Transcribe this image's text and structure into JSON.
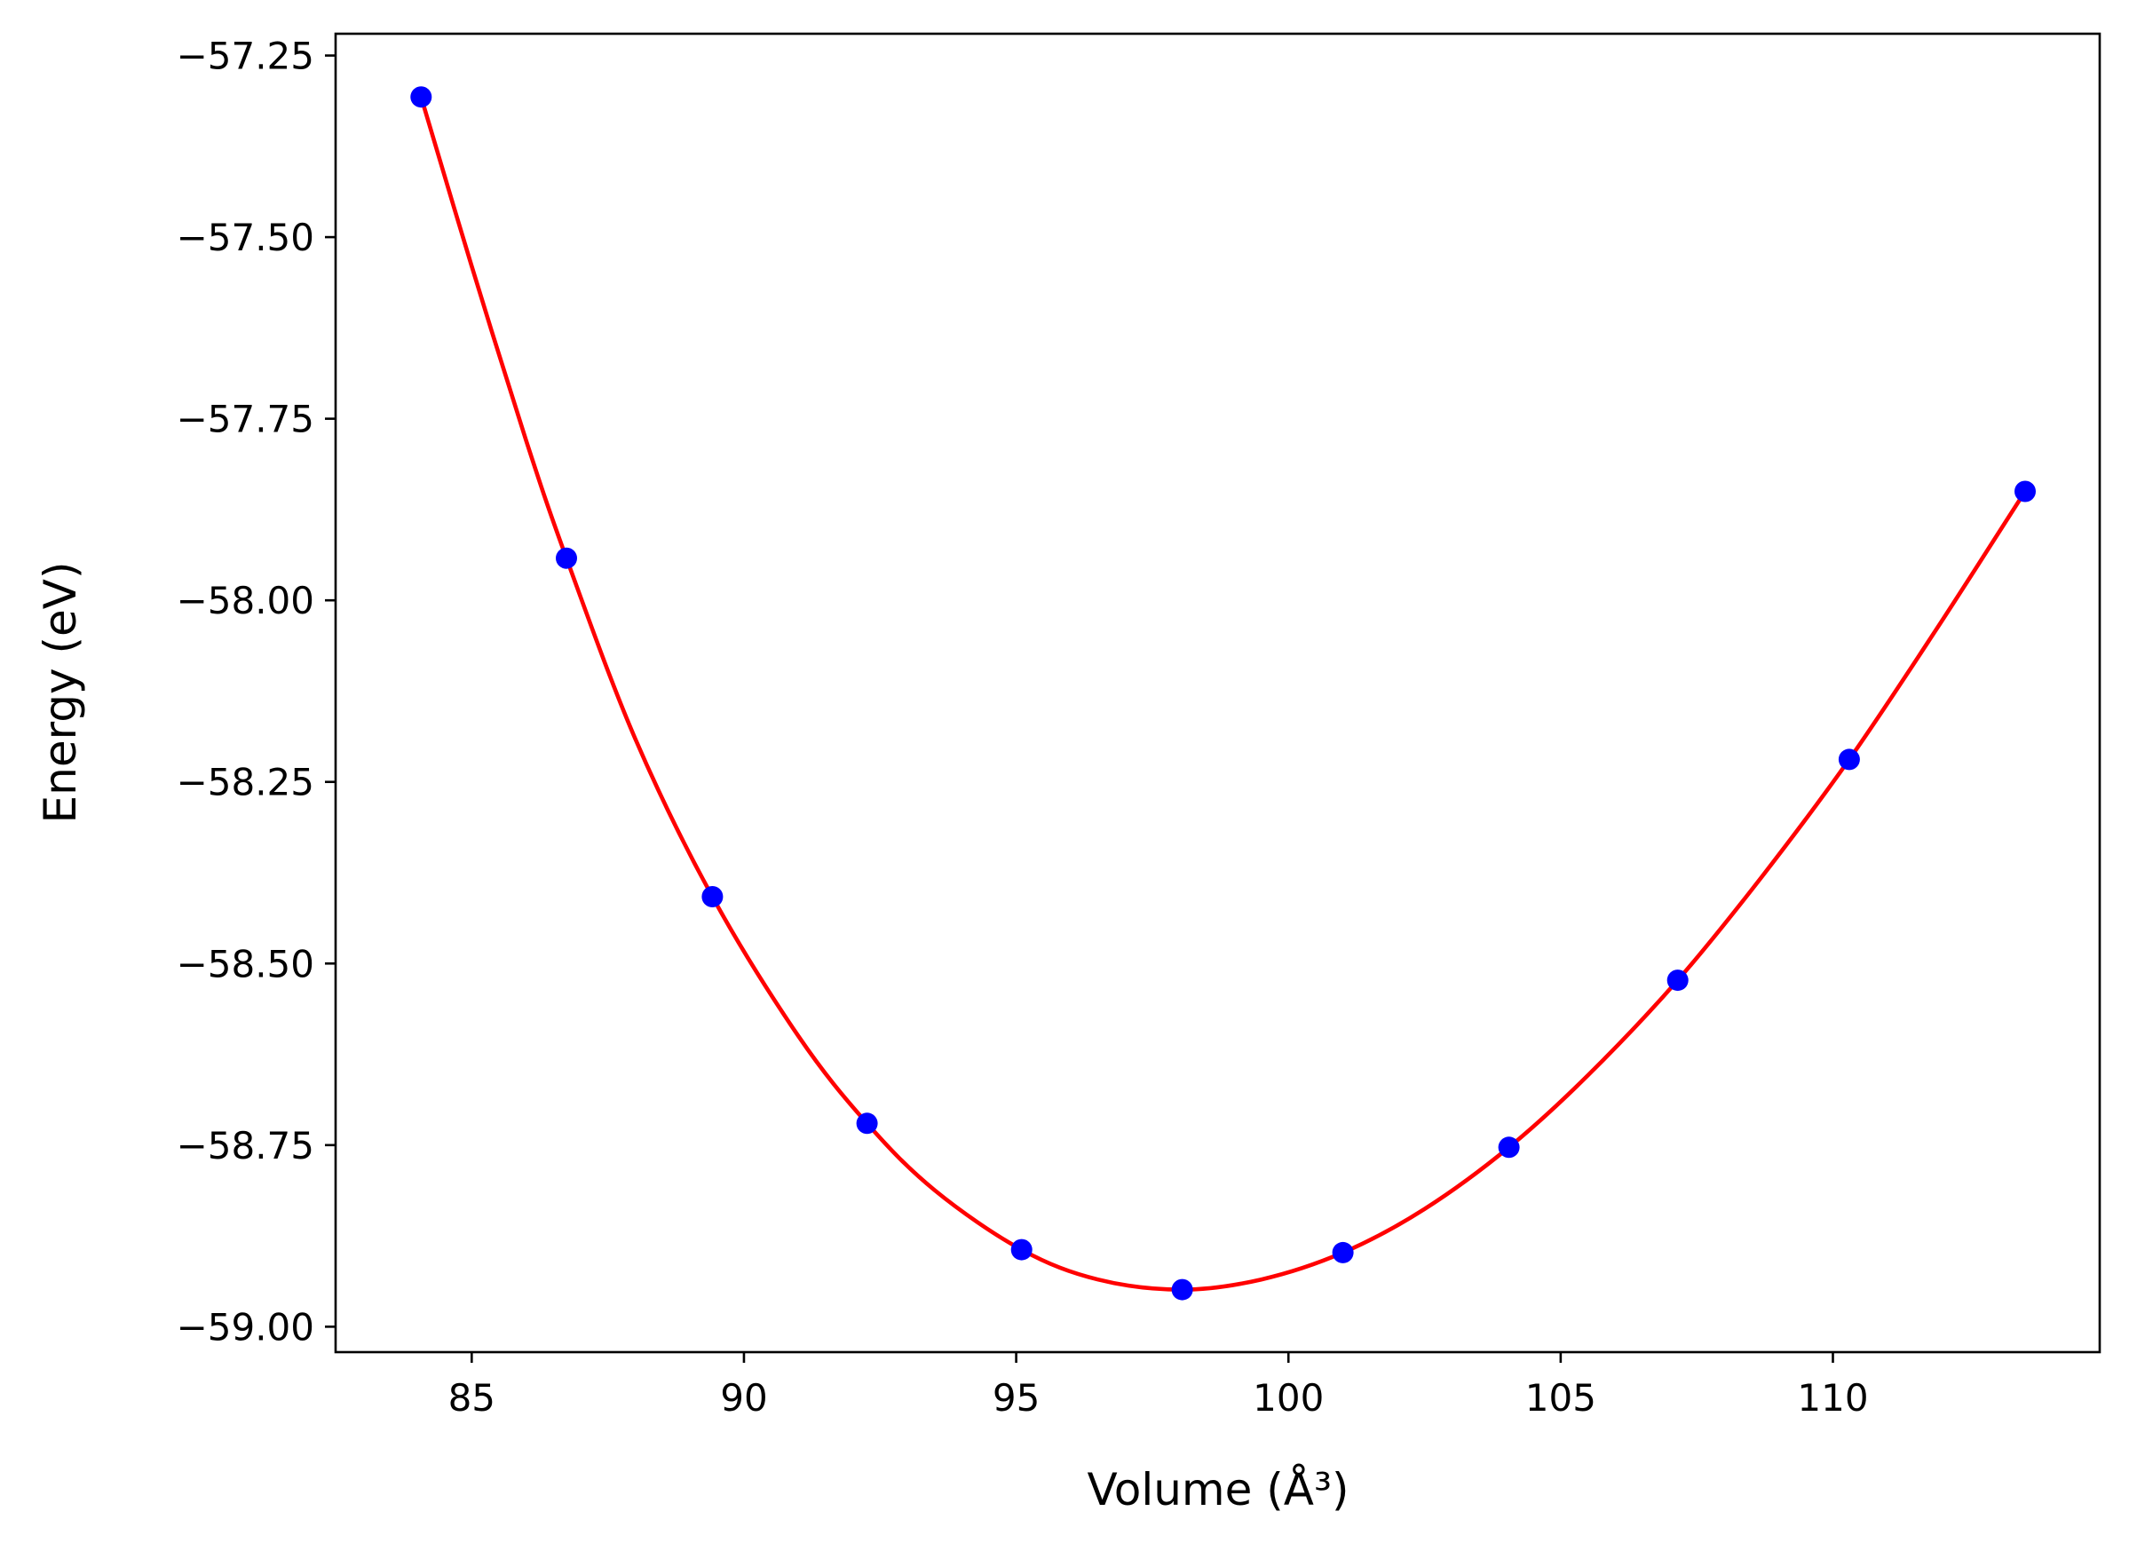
{
  "chart_data": {
    "type": "scatter",
    "title": "",
    "xlabel": "Volume (Å³)",
    "ylabel": "Energy (eV)",
    "xlim": [
      82.5,
      114.9
    ],
    "ylim": [
      -59.035,
      -57.22
    ],
    "xticks": [
      85,
      90,
      95,
      100,
      105,
      110
    ],
    "xtick_labels": [
      "85",
      "90",
      "95",
      "100",
      "105",
      "110"
    ],
    "yticks": [
      -57.25,
      -57.5,
      -57.75,
      -58.0,
      -58.25,
      -58.5,
      -58.75,
      -59.0
    ],
    "ytick_labels": [
      "−57.25",
      "−57.50",
      "−57.75",
      "−58.00",
      "−58.25",
      "−58.50",
      "−58.75",
      "−59.00"
    ],
    "grid": false,
    "series": [
      {
        "kind": "points",
        "color": "#0000ff",
        "x": [
          84.07,
          86.74,
          89.42,
          92.26,
          95.1,
          98.05,
          101.0,
          104.05,
          107.15,
          110.3,
          113.53
        ],
        "y": [
          -57.307,
          -57.942,
          -58.408,
          -58.72,
          -58.894,
          -58.949,
          -58.898,
          -58.753,
          -58.523,
          -58.219,
          -57.85
        ]
      },
      {
        "kind": "fit-curve",
        "color": "#ff0000",
        "x": [
          84.07,
          85.0,
          86.0,
          86.74,
          88.0,
          89.42,
          91.0,
          92.26,
          93.5,
          95.1,
          96.5,
          98.05,
          99.5,
          101.0,
          102.5,
          104.05,
          105.5,
          107.15,
          108.7,
          110.3,
          111.9,
          113.53
        ],
        "y": [
          -57.307,
          -57.54,
          -57.78,
          -57.942,
          -58.19,
          -58.408,
          -58.6,
          -58.72,
          -58.812,
          -58.894,
          -58.935,
          -58.949,
          -58.935,
          -58.898,
          -58.838,
          -58.753,
          -58.654,
          -58.523,
          -58.38,
          -58.219,
          -58.04,
          -57.85
        ]
      }
    ]
  }
}
